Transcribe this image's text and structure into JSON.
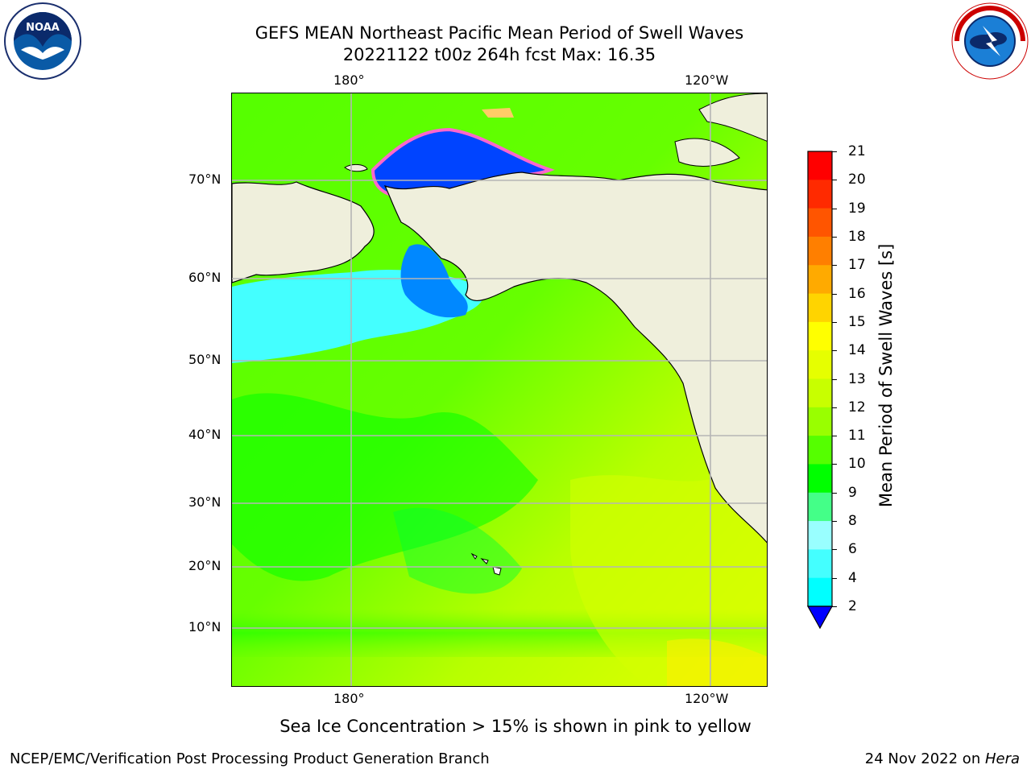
{
  "title": {
    "line1": "GEFS MEAN Northeast Pacific Mean Period of Swell Waves",
    "line2": "20221122 t00z 264h fcst   Max: 16.35"
  },
  "map": {
    "lon_labels_top": [
      "180°",
      "120°W"
    ],
    "lon_labels_bottom": [
      "180°",
      "120°W"
    ],
    "lat_labels": [
      "70°N",
      "60°N",
      "50°N",
      "40°N",
      "30°N",
      "20°N",
      "10°N"
    ]
  },
  "colorbar": {
    "title": "Mean Period of Swell Waves [s]",
    "levels": [
      "21",
      "20",
      "19",
      "18",
      "17",
      "16",
      "15",
      "14",
      "13",
      "12",
      "11",
      "10",
      "9",
      "8",
      "6",
      "4",
      "2"
    ],
    "colors": [
      "#ff0000",
      "#ff2a00",
      "#ff5500",
      "#ff7f00",
      "#ffaa00",
      "#ffd400",
      "#ffff00",
      "#e6ff00",
      "#c8ff00",
      "#99ff00",
      "#55ff00",
      "#00ff00",
      "#44ff88",
      "#99ffff",
      "#44ffff",
      "#00ffff",
      "#0088ff",
      "#0000ff"
    ]
  },
  "note": "Sea Ice Concentration > 15% is shown in pink to yellow",
  "footer": {
    "left": "NCEP/EMC/Verification Post Processing Product Generation Branch",
    "date": "24 Nov 2022 on ",
    "host": "Hera"
  },
  "logos": {
    "noaa_text": "NOAA",
    "noaa_ring": "NATIONAL OCEANIC AND ATMOSPHERIC ADMINISTRATION · U.S. DEPARTMENT OF COMMERCE",
    "nws_ring": "NATIONAL WEATHER SERVICE"
  }
}
